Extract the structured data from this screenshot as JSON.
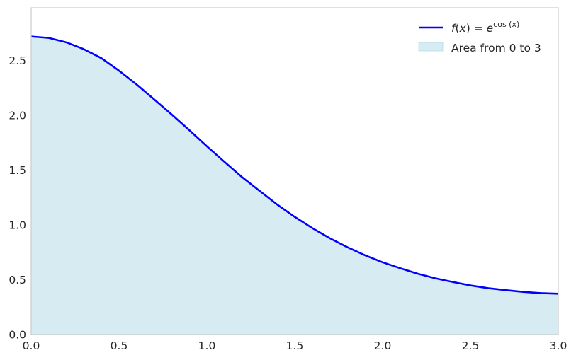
{
  "chart_data": {
    "type": "area",
    "title": "",
    "xlabel": "",
    "ylabel": "",
    "xlim": [
      0,
      3
    ],
    "ylim": [
      0,
      2.98
    ],
    "grid": false,
    "legend_position": "top-right",
    "xticks": [
      "0.0",
      "0.5",
      "1.0",
      "1.5",
      "2.0",
      "2.5",
      "3.0"
    ],
    "yticks": [
      "0.0",
      "0.5",
      "1.0",
      "1.5",
      "2.0",
      "2.5"
    ],
    "series": [
      {
        "name": "f(x) = e^cos(x)",
        "kind": "line",
        "color": "#0000ff",
        "x": [
          0,
          0.1,
          0.2,
          0.3,
          0.4,
          0.5,
          0.6,
          0.7,
          0.8,
          0.9,
          1.0,
          1.1,
          1.2,
          1.3,
          1.4,
          1.5,
          1.6,
          1.7,
          1.8,
          1.9,
          2.0,
          2.1,
          2.2,
          2.3,
          2.4,
          2.5,
          2.6,
          2.7,
          2.8,
          2.9,
          3.0
        ],
        "y": [
          2.718,
          2.705,
          2.665,
          2.602,
          2.52,
          2.406,
          2.281,
          2.145,
          2.007,
          1.864,
          1.717,
          1.575,
          1.436,
          1.31,
          1.186,
          1.073,
          0.971,
          0.878,
          0.796,
          0.723,
          0.659,
          0.605,
          0.555,
          0.513,
          0.479,
          0.448,
          0.423,
          0.405,
          0.389,
          0.378,
          0.372
        ]
      }
    ],
    "area": {
      "name": "Area from 0 to 3",
      "from": 0,
      "to": 3,
      "color": "#add8e6",
      "opacity": 0.5
    },
    "legend": {
      "line_label_parts": {
        "f": "f",
        "open": "(",
        "x": "x",
        "close": ")",
        "eq": " = ",
        "e": "e",
        "exp": "cos (x)"
      },
      "area_label": "Area from 0 to 3"
    },
    "colors": {
      "axes_edge": "#cccccc",
      "text": "#262626"
    }
  }
}
